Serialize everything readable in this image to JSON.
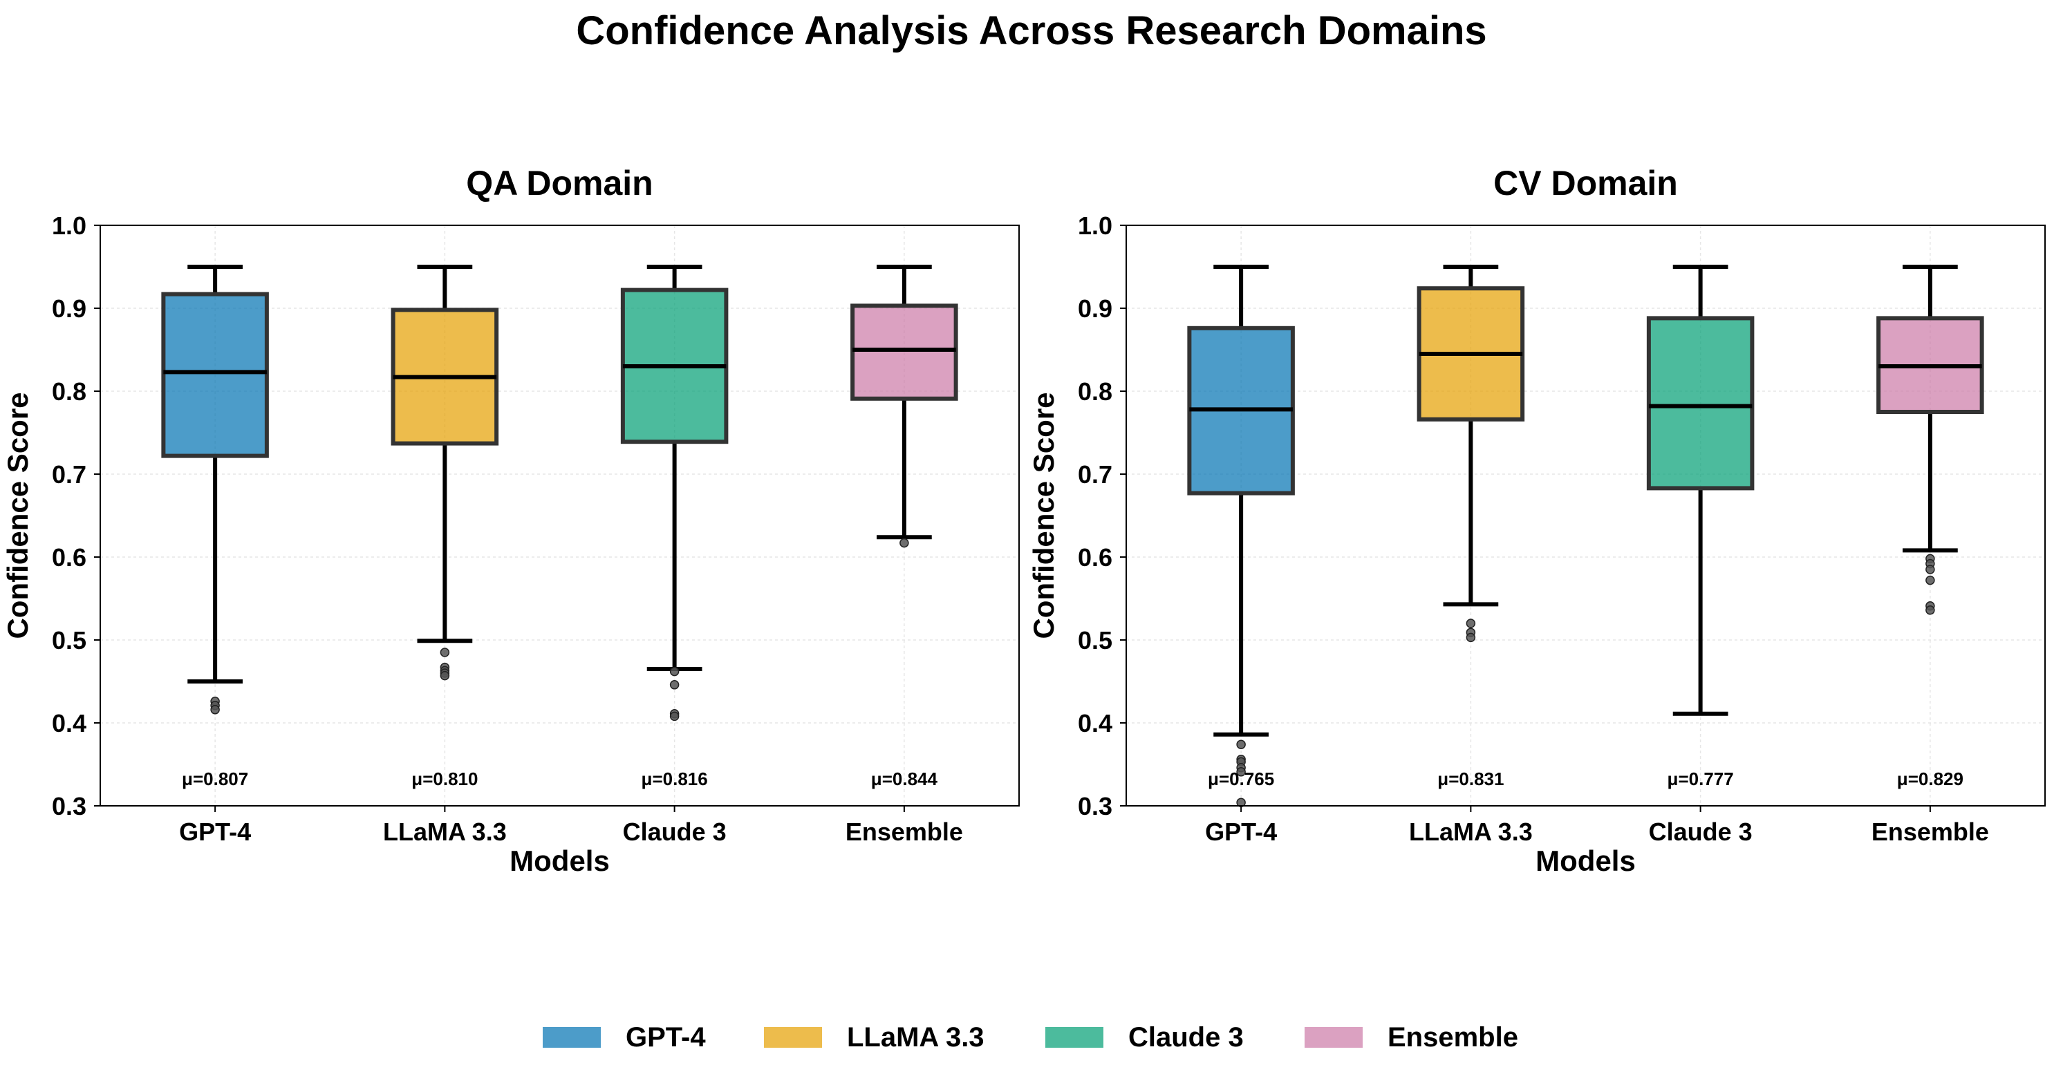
{
  "figure": {
    "title": "Confidence Analysis Across Research Domains"
  },
  "legend": {
    "placement": "bottom-center",
    "entries": [
      {
        "label": "GPT-4",
        "color": "#0072B2"
      },
      {
        "label": "LLaMA 3.3",
        "color": "#E69F00"
      },
      {
        "label": "Claude 3",
        "color": "#009E73"
      },
      {
        "label": "Ensemble",
        "color": "#CC79A7"
      }
    ]
  },
  "chart_data": [
    {
      "type": "box",
      "title": "QA Domain",
      "xlabel": "Models",
      "ylabel": "Confidence Score",
      "ylim": [
        0.3,
        1.0
      ],
      "yticks": [
        "0.3",
        "0.4",
        "0.5",
        "0.6",
        "0.7",
        "0.8",
        "0.9",
        "1.0"
      ],
      "grid": true,
      "categories": [
        "GPT-4",
        "LLaMA 3.3",
        "Claude 3",
        "Ensemble"
      ],
      "series": [
        {
          "name": "GPT-4",
          "color": "#0072B2",
          "whislo": 0.45,
          "q1": 0.722,
          "med": 0.823,
          "q3": 0.917,
          "whishi": 0.95,
          "fliers": [
            0.426,
            0.421,
            0.416
          ],
          "mean_label": "μ=0.807"
        },
        {
          "name": "LLaMA 3.3",
          "color": "#E69F00",
          "whislo": 0.499,
          "q1": 0.737,
          "med": 0.817,
          "q3": 0.898,
          "whishi": 0.95,
          "fliers": [
            0.485,
            0.467,
            0.463,
            0.46,
            0.457
          ],
          "mean_label": "μ=0.810"
        },
        {
          "name": "Claude 3",
          "color": "#009E73",
          "whislo": 0.465,
          "q1": 0.739,
          "med": 0.83,
          "q3": 0.922,
          "whishi": 0.95,
          "fliers": [
            0.462,
            0.446,
            0.411,
            0.408
          ],
          "mean_label": "μ=0.816"
        },
        {
          "name": "Ensemble",
          "color": "#CC79A7",
          "whislo": 0.624,
          "q1": 0.791,
          "med": 0.85,
          "q3": 0.903,
          "whishi": 0.95,
          "fliers": [
            0.617
          ],
          "mean_label": "μ=0.844"
        }
      ]
    },
    {
      "type": "box",
      "title": "CV Domain",
      "xlabel": "Models",
      "ylabel": "Confidence Score",
      "ylim": [
        0.3,
        1.0
      ],
      "yticks": [
        "0.3",
        "0.4",
        "0.5",
        "0.6",
        "0.7",
        "0.8",
        "0.9",
        "1.0"
      ],
      "grid": true,
      "categories": [
        "GPT-4",
        "LLaMA 3.3",
        "Claude 3",
        "Ensemble"
      ],
      "series": [
        {
          "name": "GPT-4",
          "color": "#0072B2",
          "whislo": 0.386,
          "q1": 0.677,
          "med": 0.778,
          "q3": 0.876,
          "whishi": 0.95,
          "fliers": [
            0.374,
            0.356,
            0.353,
            0.346,
            0.341,
            0.304
          ],
          "mean_label": "μ=0.765"
        },
        {
          "name": "LLaMA 3.3",
          "color": "#E69F00",
          "whislo": 0.543,
          "q1": 0.766,
          "med": 0.845,
          "q3": 0.924,
          "whishi": 0.95,
          "fliers": [
            0.52,
            0.509,
            0.503
          ],
          "mean_label": "μ=0.831"
        },
        {
          "name": "Claude 3",
          "color": "#009E73",
          "whislo": 0.411,
          "q1": 0.683,
          "med": 0.782,
          "q3": 0.888,
          "whishi": 0.95,
          "fliers": [],
          "mean_label": "μ=0.777"
        },
        {
          "name": "Ensemble",
          "color": "#CC79A7",
          "whislo": 0.608,
          "q1": 0.775,
          "med": 0.83,
          "q3": 0.888,
          "whishi": 0.95,
          "fliers": [
            0.598,
            0.592,
            0.585,
            0.572,
            0.541,
            0.536
          ],
          "mean_label": "μ=0.829"
        }
      ]
    }
  ]
}
